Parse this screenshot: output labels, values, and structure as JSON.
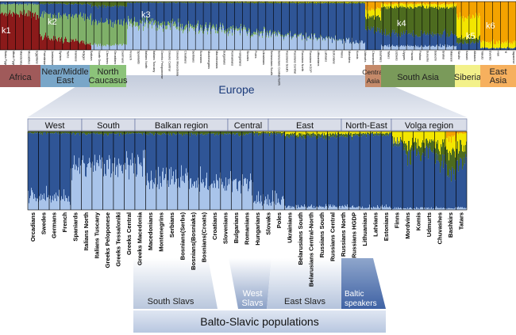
{
  "clusters": {
    "labels": [
      "k1",
      "k2",
      "k3",
      "k4",
      "k5",
      "k6"
    ],
    "colors": {
      "k1": "#8b1a1a",
      "k2": "#7fb069",
      "k3": "#2f5596",
      "k4": "#4d6b1f",
      "k5": "#f3e600",
      "k6": "#f4a300",
      "k3b": "#a9c4ea"
    }
  },
  "top_panel": {
    "regions": [
      {
        "label": "Africa",
        "color": "#a05a5a"
      },
      {
        "label": "Near/Middle East",
        "color": "#79a6c8"
      },
      {
        "label": "North Caucasus",
        "color": "#8cc37a"
      },
      {
        "label": "Europe",
        "color": ""
      },
      {
        "label": "Central Asia",
        "color": "#c58a6a"
      },
      {
        "label": "South Asia",
        "color": "#7a9a5a"
      },
      {
        "label": "Siberia",
        "color": "#f3f18a"
      },
      {
        "label": "East Asia",
        "color": "#f6b05e"
      }
    ],
    "populations": [
      "Biaka Pygmies",
      "Mbuti Pygmies",
      "Mandenka",
      "Mozabites",
      "Egyptians",
      "Palestinians",
      "Jordanians",
      "Syrians",
      "Turks",
      "Iranians",
      "Adygei",
      "Balkars",
      "North Ossetians",
      "Chechens",
      "Orcadians",
      "Germans",
      "French",
      "Spaniards",
      "Italians North",
      "Italians Tuscany",
      "Greeks Peloponnese",
      "Greeks Central",
      "Greeks Macedonia",
      "Croatians",
      "Serbians",
      "Bosnians",
      "Montenegrins",
      "Macedonians",
      "Bulgarians",
      "Romanians",
      "Hungarians",
      "Slovaks",
      "Poles",
      "Ukrainians",
      "Belarusians South",
      "Belarusians Central-North",
      "Russians South",
      "Russians Central",
      "Russians North",
      "Russians HGDP",
      "Lithuanians",
      "Latvians",
      "Estonians",
      "Finns",
      "Mordvins",
      "Komis",
      "Udmurts",
      "Chuvashes",
      "Bashkirs",
      "Tatars",
      "Uzbeks",
      "Uygurs",
      "Hazara",
      "Pathan",
      "Burusho",
      "Balochi",
      "Brahui",
      "Makrani",
      "Sindhi",
      "Kalash",
      "Altaians",
      "Yakuts",
      "Evenks",
      "Han",
      "Yi",
      "Japanese"
    ]
  },
  "europe_label": "Europe",
  "bottom_panel": {
    "regions": [
      {
        "label": "West"
      },
      {
        "label": "South"
      },
      {
        "label": "Balkan region"
      },
      {
        "label": "Central"
      },
      {
        "label": "East"
      },
      {
        "label": "North-East"
      },
      {
        "label": "Volga region"
      }
    ],
    "populations": [
      "Orcadians",
      "Swedes",
      "Germans",
      "French",
      "Spaniards",
      "Italians North",
      "Italians Tuscany",
      "Greeks Peloponese",
      "Greeks Tessaloniki",
      "Greeks Central",
      "Greeks Macedonia",
      "Macedonians",
      "Montenegrins",
      "Serbians",
      "Bosnians(Serbs)",
      "Bosnians(Bosniaks)",
      "Bosnians(Croats)",
      "Croatians",
      "Slovenians",
      "Bulgarians",
      "Romanians",
      "Hungarians",
      "Slovaks",
      "Poles",
      "Ukrainians",
      "Belarusians South",
      "Belarusians Central-North",
      "Russians South",
      "Russians Central",
      "Russians North",
      "Russians HGDP",
      "Lithuanians",
      "Latvians",
      "Estonians",
      "Finns",
      "Mordvins",
      "Komis",
      "Udmurts",
      "Chuvashes",
      "Bashkirs",
      "Tatars"
    ]
  },
  "groups": {
    "south_slavs": "South Slavs",
    "west_slavs_line1": "West",
    "west_slavs_line2": "Slavs",
    "east_slavs": "East Slavs",
    "baltic_line1": "Baltic",
    "baltic_line2": "speakers"
  },
  "balto_slavic": "Balto-Slavic populations"
}
